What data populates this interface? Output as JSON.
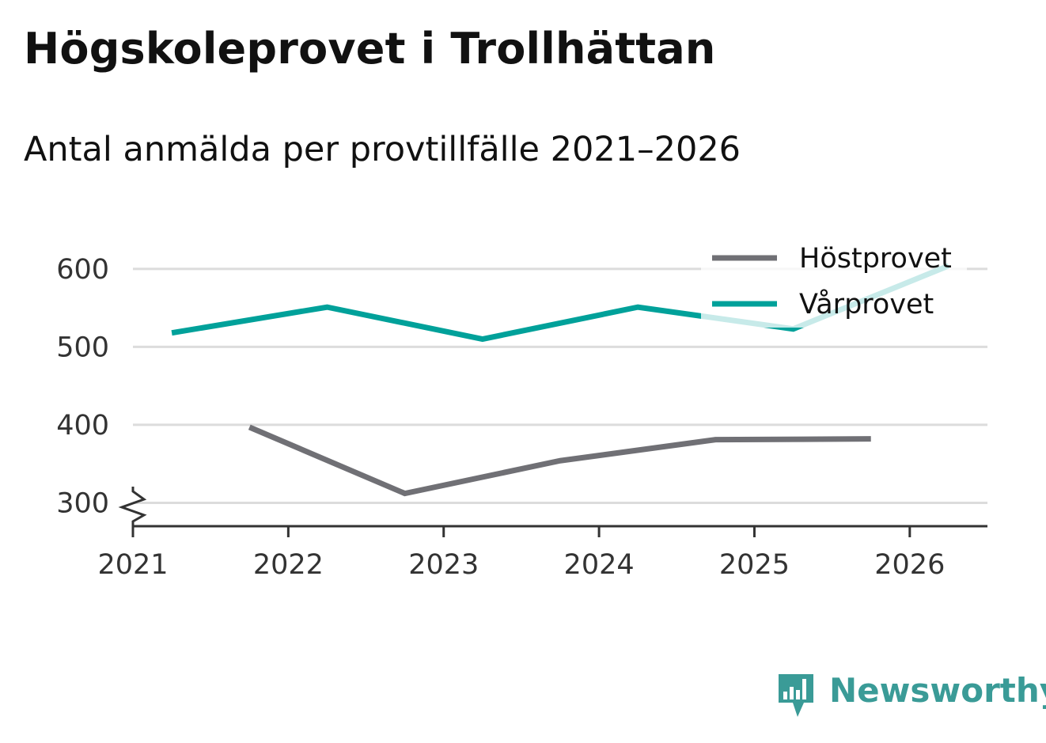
{
  "title": "Högskoleprovet i Trollhättan",
  "subtitle": "Antal anmälda per provtillfälle 2021–2026",
  "brand": {
    "name": "Newsworthy",
    "icon": "newsworthy-logo-icon",
    "color": "#3a9b97"
  },
  "chart_data": {
    "type": "line",
    "title": "Högskoleprovet i Trollhättan",
    "subtitle": "Antal anmälda per provtillfälle 2021–2026",
    "xlabel": "",
    "ylabel": "",
    "xlim": [
      2021,
      2026.5
    ],
    "ylim": [
      270,
      610
    ],
    "x_ticks": [
      "2021",
      "2022",
      "2023",
      "2024",
      "2025",
      "2026"
    ],
    "y_ticks": [
      "300",
      "400",
      "500",
      "600"
    ],
    "axis_break": true,
    "grid": true,
    "legend_position": "top-right",
    "series": [
      {
        "name": "Höstprovet",
        "color": "#707075",
        "x": [
          2021.75,
          2022.75,
          2023.75,
          2024.75,
          2025.75
        ],
        "values": [
          397,
          312,
          354,
          381,
          382
        ]
      },
      {
        "name": "Vårprovet",
        "color": "#00a19a",
        "x": [
          2021.25,
          2022.25,
          2023.25,
          2024.25,
          2025.25,
          2026.25
        ],
        "values": [
          518,
          551,
          510,
          551,
          523,
          604
        ]
      }
    ]
  }
}
